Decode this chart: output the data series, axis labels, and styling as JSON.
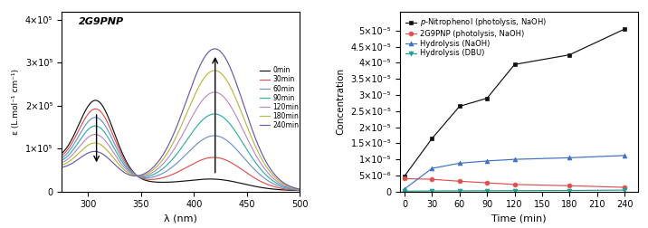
{
  "left_title": "2G9PNP",
  "left_xlabel": "λ (nm)",
  "left_ylabel": "ε (L.mol⁻¹ cm⁻¹)",
  "left_xlim": [
    275,
    500
  ],
  "left_ylim": [
    0,
    420000.0
  ],
  "times": [
    0,
    30,
    60,
    90,
    120,
    180,
    240
  ],
  "time_colors": [
    "#111111",
    "#e05050",
    "#7090d0",
    "#30b0a0",
    "#c088c8",
    "#b8b840",
    "#6858a8"
  ],
  "right_xlabel": "Time (min)",
  "right_ylabel": "Concentration",
  "right_xticks": [
    0,
    30,
    60,
    90,
    120,
    150,
    180,
    210,
    240
  ],
  "time_points": [
    0,
    30,
    60,
    90,
    120,
    180,
    240
  ],
  "pnp_photo_naoh": [
    4.8e-06,
    1.65e-05,
    2.65e-05,
    2.9e-05,
    3.95e-05,
    4.25e-05,
    5.05e-05
  ],
  "g9pnp_photo_naoh": [
    4e-06,
    3.8e-06,
    3.2e-06,
    2.7e-06,
    2.2e-06,
    1.8e-06,
    1.3e-06
  ],
  "hydrolysis_naoh": [
    8e-07,
    7.2e-06,
    8.8e-06,
    9.5e-06,
    1e-05,
    1.05e-05,
    1.12e-05
  ],
  "hydrolysis_dbu": [
    1.2e-07,
    1.8e-07,
    2.2e-07,
    2.5e-07,
    2.8e-07,
    3.2e-07,
    4.5e-07
  ],
  "series_colors": [
    "#111111",
    "#e05050",
    "#4070c0",
    "#20a090"
  ],
  "series_markers": [
    "s",
    "o",
    "^",
    "v"
  ],
  "series_labels": [
    "p-Nitrophenol (photolysis, NaOH)",
    "2G9PNP (photolysis, NaOH)",
    "Hydrolysis (NaOH)",
    "Hydrolysis (DBU)"
  ]
}
